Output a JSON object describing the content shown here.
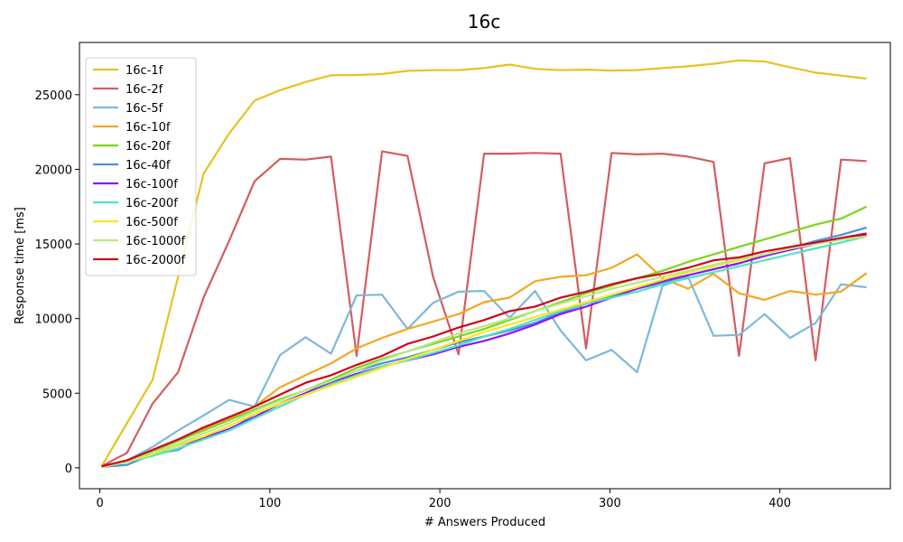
{
  "chart_data": {
    "type": "line",
    "title": "16c",
    "xlabel": "# Answers Produced",
    "ylabel": "Response time [ms]",
    "xlim": [
      -12,
      465
    ],
    "ylim": [
      -1400,
      28500
    ],
    "xticks": [
      0,
      100,
      200,
      300,
      400
    ],
    "yticks": [
      0,
      5000,
      10000,
      15000,
      20000,
      25000
    ],
    "grid": false,
    "legend_position": "top-left",
    "x": [
      1,
      16,
      31,
      46,
      61,
      76,
      91,
      106,
      121,
      136,
      151,
      166,
      181,
      196,
      211,
      226,
      241,
      256,
      271,
      286,
      301,
      316,
      331,
      346,
      361,
      376,
      391,
      406,
      421,
      436,
      451
    ],
    "series": [
      {
        "name": "16c-1f",
        "color": "#e8c21e",
        "values": [
          100,
          3000,
          5900,
          12800,
          19700,
          22400,
          24600,
          25300,
          25850,
          26300,
          26320,
          26380,
          26600,
          26640,
          26650,
          26780,
          27020,
          26730,
          26640,
          26680,
          26620,
          26650,
          26780,
          26900,
          27070,
          27300,
          27220,
          26840,
          26480,
          26280,
          26080
        ]
      },
      {
        "name": "16c-2f",
        "color": "#d45d5d",
        "values": [
          100,
          1000,
          4300,
          6400,
          11400,
          15200,
          19200,
          20700,
          20650,
          20850,
          7500,
          21200,
          20900,
          12800,
          7600,
          21050,
          21050,
          21100,
          21050,
          8000,
          21100,
          21000,
          21050,
          20850,
          20500,
          7500,
          20400,
          20750,
          7200,
          20650,
          20550
        ]
      },
      {
        "name": "16c-5f",
        "color": "#7db9d8",
        "values": [
          50,
          500,
          1400,
          2500,
          3500,
          4550,
          4100,
          7550,
          8750,
          7650,
          11550,
          11600,
          9300,
          11050,
          11800,
          11850,
          10050,
          11850,
          9200,
          7200,
          7900,
          6400,
          12200,
          12800,
          8850,
          8900,
          10300,
          8700,
          9700,
          12300,
          12100
        ]
      },
      {
        "name": "16c-10f",
        "color": "#f5a623",
        "values": [
          50,
          500,
          1200,
          1900,
          2600,
          3300,
          4100,
          5400,
          6200,
          7000,
          8000,
          8700,
          9300,
          9800,
          10300,
          11100,
          11400,
          12500,
          12800,
          12900,
          13400,
          14300,
          12700,
          12000,
          13000,
          11700,
          11250,
          11850,
          11600,
          11800,
          13050
        ]
      },
      {
        "name": "16c-20f",
        "color": "#7ed321",
        "values": [
          50,
          500,
          1100,
          1800,
          2500,
          3200,
          3900,
          4600,
          5200,
          5900,
          6700,
          7300,
          7800,
          8300,
          8800,
          9300,
          9900,
          10500,
          11100,
          11700,
          12200,
          12700,
          13200,
          13800,
          14300,
          14800,
          15300,
          15800,
          16300,
          16700,
          17500
        ]
      },
      {
        "name": "16c-40f",
        "color": "#4a90e2",
        "values": [
          50,
          200,
          900,
          1200,
          2100,
          2500,
          3600,
          4300,
          5000,
          5800,
          6500,
          7000,
          7400,
          7900,
          8400,
          8800,
          9200,
          9700,
          10400,
          11000,
          11500,
          12000,
          12400,
          12900,
          13300,
          13700,
          14200,
          14700,
          15200,
          15600,
          16100
        ]
      },
      {
        "name": "16c-100f",
        "color": "#9013fe",
        "values": [
          50,
          400,
          900,
          1500,
          2000,
          2600,
          3400,
          4300,
          5000,
          5700,
          6300,
          6800,
          7200,
          7600,
          8100,
          8500,
          9000,
          9600,
          10300,
          10800,
          11400,
          12000,
          12500,
          12900,
          13300,
          13700,
          14200,
          14600,
          15000,
          15300,
          15600
        ]
      },
      {
        "name": "16c-200f",
        "color": "#50e3c2",
        "values": [
          50,
          400,
          800,
          1300,
          1900,
          2500,
          3300,
          4100,
          4900,
          5600,
          6200,
          6800,
          7200,
          7700,
          8200,
          8800,
          9300,
          9900,
          10500,
          11000,
          11400,
          11800,
          12300,
          12700,
          13100,
          13500,
          13900,
          14300,
          14700,
          15100,
          15500
        ]
      },
      {
        "name": "16c-500f",
        "color": "#f8e71c",
        "values": [
          50,
          400,
          900,
          1500,
          2100,
          2800,
          3600,
          4300,
          4900,
          5500,
          6100,
          6700,
          7300,
          7900,
          8500,
          9100,
          9600,
          10100,
          10600,
          11100,
          11600,
          12100,
          12600,
          13100,
          13500,
          13900,
          14300,
          14700,
          15000,
          15300,
          15500
        ]
      },
      {
        "name": "16c-1000f",
        "color": "#b8e986",
        "values": [
          50,
          400,
          1000,
          1600,
          2300,
          3000,
          3800,
          4500,
          5200,
          5800,
          6500,
          7200,
          7800,
          8400,
          9000,
          9500,
          10000,
          10500,
          11000,
          11500,
          12000,
          12400,
          12800,
          13200,
          13600,
          14000,
          14300,
          14700,
          15000,
          15300,
          15500
        ]
      },
      {
        "name": "16c-2000f",
        "color": "#d0021b",
        "values": [
          100,
          500,
          1200,
          1900,
          2700,
          3400,
          4100,
          4900,
          5700,
          6200,
          6900,
          7500,
          8300,
          8800,
          9400,
          9900,
          10500,
          10800,
          11400,
          11800,
          12300,
          12700,
          13000,
          13400,
          13900,
          14100,
          14500,
          14800,
          15100,
          15400,
          15700
        ]
      }
    ]
  }
}
